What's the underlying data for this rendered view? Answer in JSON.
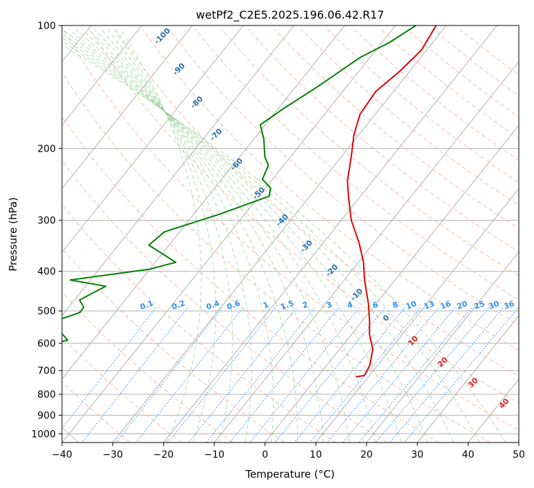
{
  "chart_data": {
    "type": "line",
    "subtype": "skew-t log-p diagram",
    "title": "wetPf2_C2E5.2025.196.06.42.R17",
    "xlabel": "Temperature (°C)",
    "ylabel": "Pressure (hPa)",
    "xlim": [
      -40,
      50
    ],
    "ylim": [
      1050,
      100
    ],
    "y_scale": "log",
    "x_ticks": [
      "−40",
      "−30",
      "−20",
      "−10",
      "0",
      "10",
      "20",
      "30",
      "40",
      "50"
    ],
    "y_ticks": [
      "100",
      "200",
      "300",
      "400",
      "500",
      "600",
      "700",
      "800",
      "900",
      "1000"
    ],
    "grid": true,
    "series": [
      {
        "color": "#e00000",
        "points": [
          [
            -32,
            100
          ],
          [
            -31,
            115
          ],
          [
            -32,
            130
          ],
          [
            -33.5,
            145
          ],
          [
            -33,
            165
          ],
          [
            -31,
            185
          ],
          [
            -28,
            210
          ],
          [
            -25,
            240
          ],
          [
            -22,
            265
          ],
          [
            -18,
            300
          ],
          [
            -13,
            340
          ],
          [
            -9,
            380
          ],
          [
            -6,
            420
          ],
          [
            -1.5,
            480
          ],
          [
            1.5,
            530
          ],
          [
            3.5,
            570
          ],
          [
            6.5,
            620
          ],
          [
            8.5,
            680
          ],
          [
            9,
            720
          ],
          [
            7.5,
            725
          ]
        ]
      },
      {
        "color": "#008000",
        "points": [
          [
            -36,
            100
          ],
          [
            -38.5,
            110
          ],
          [
            -42,
            120
          ],
          [
            -45.5,
            140
          ],
          [
            -49,
            160
          ],
          [
            -51,
            175
          ],
          [
            -48,
            190
          ],
          [
            -45,
            210
          ],
          [
            -43,
            220
          ],
          [
            -42,
            238
          ],
          [
            -39,
            250
          ],
          [
            -38,
            262
          ],
          [
            -45,
            290
          ],
          [
            -53,
            320
          ],
          [
            -54,
            345
          ],
          [
            -46,
            380
          ],
          [
            -50,
            395
          ],
          [
            -64,
            420
          ],
          [
            -56,
            435
          ],
          [
            -59,
            470
          ],
          [
            -57,
            490
          ],
          [
            -57,
            505
          ],
          [
            -60,
            525
          ],
          [
            -58,
            560
          ],
          [
            -55,
            590
          ],
          [
            -62,
            620
          ],
          [
            -56,
            645
          ],
          [
            -88,
            685
          ],
          [
            -73,
            695
          ],
          [
            -90,
            705
          ]
        ]
      }
    ],
    "isopleth_labels": {
      "moist": [
        "-100",
        "-90",
        "-80",
        "-70",
        "-60",
        "-50",
        "-40",
        "-30",
        "-20",
        "-10",
        "0",
        "10",
        "20",
        "30",
        "40"
      ],
      "mixing_ratio": [
        "0.1",
        "0.2",
        "0.4",
        "0.6",
        "1",
        "1.5",
        "2",
        "3",
        "4",
        "6",
        "8",
        "10",
        "13",
        "16",
        "20",
        "25",
        "30",
        "36"
      ]
    }
  }
}
